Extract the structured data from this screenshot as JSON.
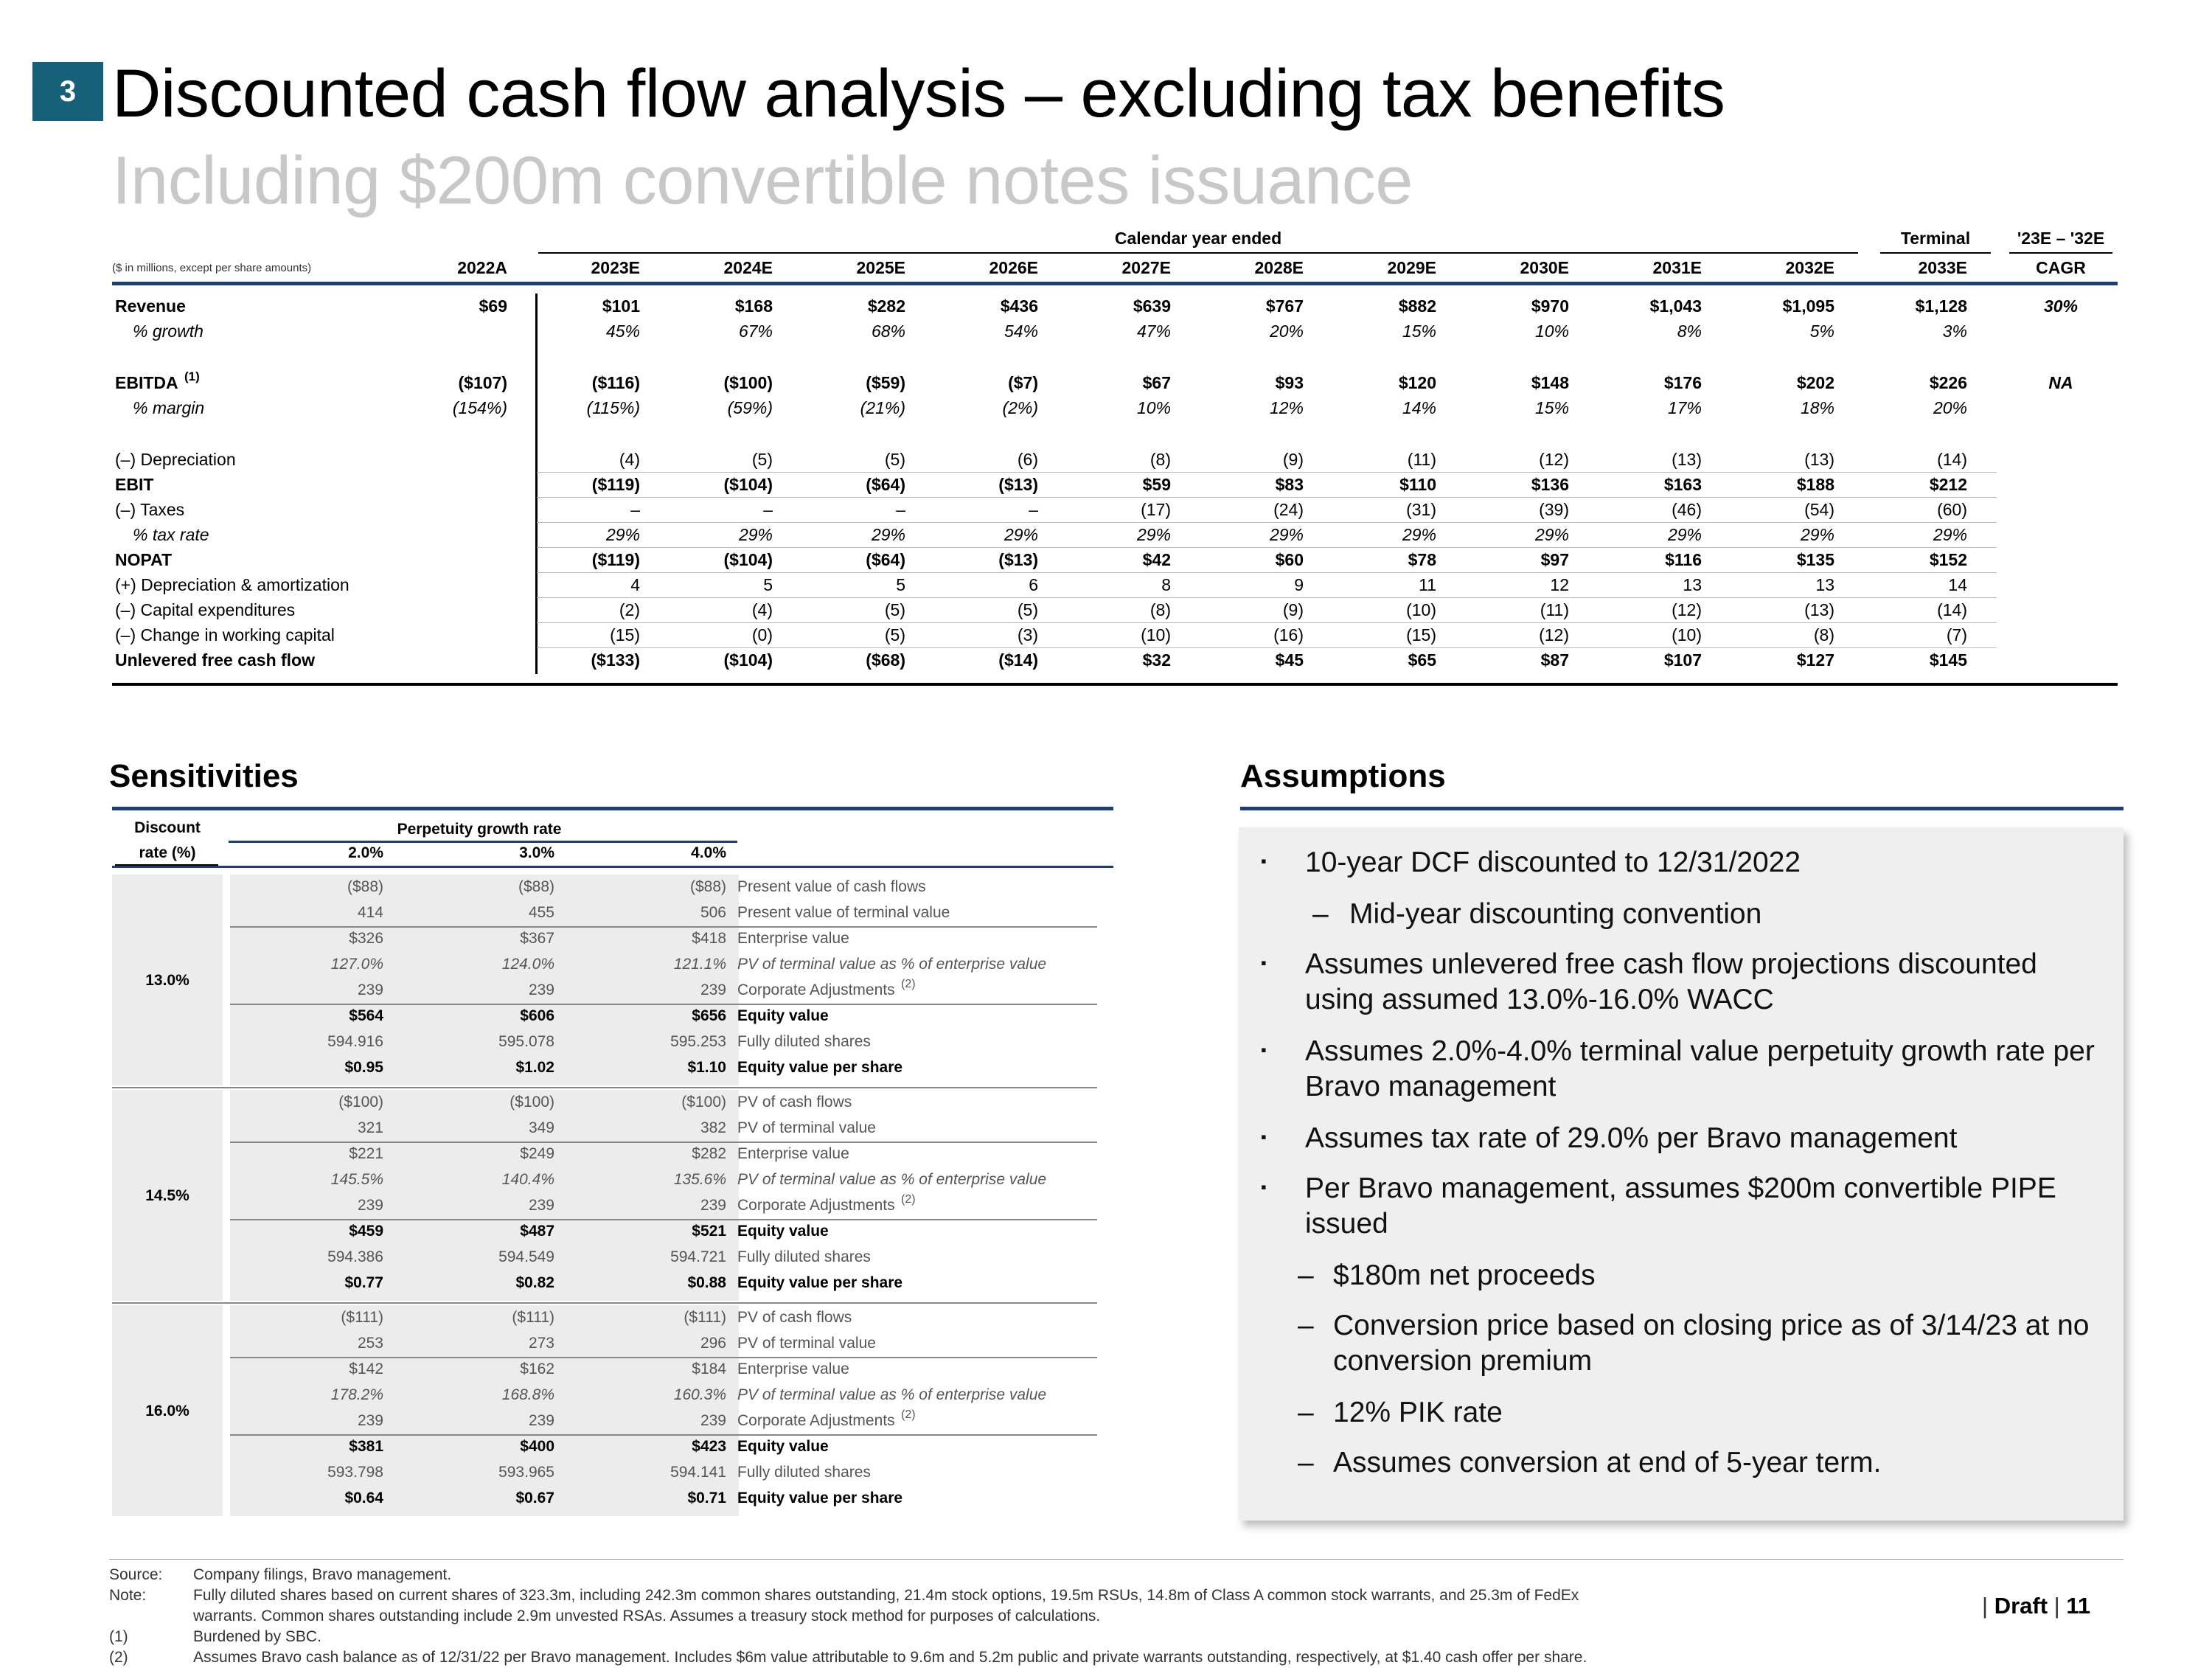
{
  "header": {
    "section_number": "3",
    "title": "Discounted cash flow analysis – excluding tax benefits",
    "subtitle": "Including $200m convertible notes issuance"
  },
  "dcf": {
    "units_note": "($ in millions, except per share amounts)",
    "calendar_label": "Calendar year ended",
    "terminal_label": "Terminal",
    "cagr_label_top": "'23E – '32E",
    "cagr_label": "CAGR",
    "columns": [
      "2022A",
      "2023E",
      "2024E",
      "2025E",
      "2026E",
      "2027E",
      "2028E",
      "2029E",
      "2030E",
      "2031E",
      "2032E",
      "2033E"
    ],
    "rows": [
      {
        "label": "Revenue",
        "style": "bold-label",
        "values": [
          "$69",
          "$101",
          "$168",
          "$282",
          "$436",
          "$639",
          "$767",
          "$882",
          "$970",
          "$1,043",
          "$1,095",
          "$1,128"
        ],
        "cagr": "30%"
      },
      {
        "label": "% growth",
        "style": "italic",
        "values": [
          "",
          "45%",
          "67%",
          "68%",
          "54%",
          "47%",
          "20%",
          "15%",
          "10%",
          "8%",
          "5%",
          "3%"
        ],
        "cagr": ""
      },
      {
        "label": "EBITDA",
        "footnote": "(1)",
        "style": "bold-label",
        "values": [
          "($107)",
          "($116)",
          "($100)",
          "($59)",
          "($7)",
          "$67",
          "$93",
          "$120",
          "$148",
          "$176",
          "$202",
          "$226"
        ],
        "cagr": "NA"
      },
      {
        "label": "% margin",
        "style": "italic",
        "values": [
          "(154%)",
          "(115%)",
          "(59%)",
          "(21%)",
          "(2%)",
          "10%",
          "12%",
          "14%",
          "15%",
          "17%",
          "18%",
          "20%"
        ],
        "cagr": ""
      },
      {
        "label": "(–) Depreciation",
        "style": "plain",
        "values": [
          "",
          "(4)",
          "(5)",
          "(5)",
          "(6)",
          "(8)",
          "(9)",
          "(11)",
          "(12)",
          "(13)",
          "(13)",
          "(14)"
        ],
        "cagr": ""
      },
      {
        "label": "EBIT",
        "style": "bold",
        "values": [
          "",
          "($119)",
          "($104)",
          "($64)",
          "($13)",
          "$59",
          "$83",
          "$110",
          "$136",
          "$163",
          "$188",
          "$212"
        ],
        "cagr": ""
      },
      {
        "label": "(–) Taxes",
        "style": "plain",
        "values": [
          "",
          "–",
          "–",
          "–",
          "–",
          "(17)",
          "(24)",
          "(31)",
          "(39)",
          "(46)",
          "(54)",
          "(60)"
        ],
        "cagr": ""
      },
      {
        "label": "% tax rate",
        "style": "italic",
        "values": [
          "",
          "29%",
          "29%",
          "29%",
          "29%",
          "29%",
          "29%",
          "29%",
          "29%",
          "29%",
          "29%",
          "29%"
        ],
        "cagr": ""
      },
      {
        "label": "NOPAT",
        "style": "bold",
        "values": [
          "",
          "($119)",
          "($104)",
          "($64)",
          "($13)",
          "$42",
          "$60",
          "$78",
          "$97",
          "$116",
          "$135",
          "$152"
        ],
        "cagr": ""
      },
      {
        "label": "(+) Depreciation & amortization",
        "style": "plain",
        "values": [
          "",
          "4",
          "5",
          "5",
          "6",
          "8",
          "9",
          "11",
          "12",
          "13",
          "13",
          "14"
        ],
        "cagr": ""
      },
      {
        "label": "(–) Capital expenditures",
        "style": "plain",
        "values": [
          "",
          "(2)",
          "(4)",
          "(5)",
          "(5)",
          "(8)",
          "(9)",
          "(10)",
          "(11)",
          "(12)",
          "(13)",
          "(14)"
        ],
        "cagr": ""
      },
      {
        "label": "(–) Change in working capital",
        "style": "plain",
        "values": [
          "",
          "(15)",
          "(0)",
          "(5)",
          "(3)",
          "(10)",
          "(16)",
          "(15)",
          "(12)",
          "(10)",
          "(8)",
          "(7)"
        ],
        "cagr": ""
      },
      {
        "label": "Unlevered free cash flow",
        "style": "bold",
        "values": [
          "",
          "($133)",
          "($104)",
          "($68)",
          "($14)",
          "$32",
          "$45",
          "$65",
          "$87",
          "$107",
          "$127",
          "$145"
        ],
        "cagr": ""
      }
    ]
  },
  "sensitivities": {
    "heading": "Sensitivities",
    "discount_label_1": "Discount",
    "discount_label_2": "rate (%)",
    "growth_label": "Perpetuity growth rate",
    "growth_rates": [
      "2.0%",
      "3.0%",
      "4.0%"
    ],
    "blocks": [
      {
        "rate": "13.0%",
        "rows": [
          {
            "v": [
              "($88)",
              "($88)",
              "($88)"
            ],
            "label": "Present value of cash flows",
            "style": "plain"
          },
          {
            "v": [
              "414",
              "455",
              "506"
            ],
            "label": "Present value of terminal value",
            "style": "plain"
          },
          {
            "v": [
              "$326",
              "$367",
              "$418"
            ],
            "label": "Enterprise value",
            "style": "plain"
          },
          {
            "v": [
              "127.0%",
              "124.0%",
              "121.1%"
            ],
            "label": "PV of terminal value as % of enterprise value",
            "style": "italic"
          },
          {
            "v": [
              "239",
              "239",
              "239"
            ],
            "label": "Corporate Adjustments",
            "sup": "(2)",
            "style": "plain"
          },
          {
            "v": [
              "$564",
              "$606",
              "$656"
            ],
            "label": "Equity value",
            "style": "bold"
          },
          {
            "v": [
              "594.916",
              "595.078",
              "595.253"
            ],
            "label": "Fully diluted shares",
            "style": "plain"
          },
          {
            "v": [
              "$0.95",
              "$1.02",
              "$1.10"
            ],
            "label": "Equity value per share",
            "style": "bold"
          }
        ]
      },
      {
        "rate": "14.5%",
        "rows": [
          {
            "v": [
              "($100)",
              "($100)",
              "($100)"
            ],
            "label": "PV of cash flows",
            "style": "plain"
          },
          {
            "v": [
              "321",
              "349",
              "382"
            ],
            "label": "PV of terminal value",
            "style": "plain"
          },
          {
            "v": [
              "$221",
              "$249",
              "$282"
            ],
            "label": "Enterprise value",
            "style": "plain"
          },
          {
            "v": [
              "145.5%",
              "140.4%",
              "135.6%"
            ],
            "label": "PV of terminal value as % of enterprise value",
            "style": "italic"
          },
          {
            "v": [
              "239",
              "239",
              "239"
            ],
            "label": "Corporate Adjustments",
            "sup": "(2)",
            "style": "plain"
          },
          {
            "v": [
              "$459",
              "$487",
              "$521"
            ],
            "label": "Equity value",
            "style": "bold"
          },
          {
            "v": [
              "594.386",
              "594.549",
              "594.721"
            ],
            "label": "Fully diluted shares",
            "style": "plain"
          },
          {
            "v": [
              "$0.77",
              "$0.82",
              "$0.88"
            ],
            "label": "Equity value per share",
            "style": "bold"
          }
        ]
      },
      {
        "rate": "16.0%",
        "rows": [
          {
            "v": [
              "($111)",
              "($111)",
              "($111)"
            ],
            "label": "PV of cash flows",
            "style": "plain"
          },
          {
            "v": [
              "253",
              "273",
              "296"
            ],
            "label": "PV of terminal value",
            "style": "plain"
          },
          {
            "v": [
              "$142",
              "$162",
              "$184"
            ],
            "label": "Enterprise value",
            "style": "plain"
          },
          {
            "v": [
              "178.2%",
              "168.8%",
              "160.3%"
            ],
            "label": "PV of terminal value as % of enterprise value",
            "style": "italic"
          },
          {
            "v": [
              "239",
              "239",
              "239"
            ],
            "label": "Corporate Adjustments",
            "sup": "(2)",
            "style": "plain"
          },
          {
            "v": [
              "$381",
              "$400",
              "$423"
            ],
            "label": "Equity value",
            "style": "bold"
          },
          {
            "v": [
              "593.798",
              "593.965",
              "594.141"
            ],
            "label": "Fully diluted shares",
            "style": "plain"
          },
          {
            "v": [
              "$0.64",
              "$0.67",
              "$0.71"
            ],
            "label": "Equity value per share",
            "style": "bold"
          }
        ]
      }
    ]
  },
  "assumptions": {
    "heading": "Assumptions",
    "items": [
      {
        "level": 1,
        "marker": "▪",
        "text": "10-year DCF discounted to 12/31/2022"
      },
      {
        "level": 2,
        "marker": "–",
        "text": "Mid-year discounting convention"
      },
      {
        "level": 1,
        "marker": "▪",
        "text": "Assumes unlevered free cash flow projections discounted using assumed 13.0%-16.0% WACC"
      },
      {
        "level": 1,
        "marker": "▪",
        "text": "Assumes 2.0%-4.0% terminal value perpetuity growth rate per Bravo management"
      },
      {
        "level": 1,
        "marker": "▪",
        "text": "Assumes tax rate of 29.0% per Bravo management"
      },
      {
        "level": 1,
        "marker": "▪",
        "text": "Per Bravo management, assumes $200m convertible PIPE issued"
      },
      {
        "level": 2,
        "marker": "–",
        "text": "$180m net proceeds"
      },
      {
        "level": 2,
        "marker": "–",
        "text": "Conversion price based on closing price as of 3/14/23 at no conversion premium"
      },
      {
        "level": 2,
        "marker": "–",
        "text": "12% PIK rate"
      },
      {
        "level": 2,
        "marker": "–",
        "text": "Assumes conversion at end of 5-year term."
      }
    ]
  },
  "footnotes": [
    {
      "key": "Source:",
      "text": "Company filings, Bravo management."
    },
    {
      "key": "Note:",
      "text": "Fully diluted shares based on current shares of 323.3m, including 242.3m common shares outstanding, 21.4m stock options, 19.5m RSUs, 14.8m of Class A common stock warrants, and 25.3m of FedEx"
    },
    {
      "key": "",
      "text": "warrants. Common shares outstanding include 2.9m unvested RSAs. Assumes a treasury stock method for purposes of calculations."
    },
    {
      "key": "(1)",
      "text": "Burdened by SBC."
    },
    {
      "key": "(2)",
      "text": "Assumes Bravo cash balance as of 12/31/22 per Bravo management. Includes $6m value attributable to 9.6m and 5.2m public and private warrants outstanding, respectively, at $1.40 cash offer per share."
    }
  ],
  "page_footer": {
    "draft_label": "Draft",
    "page_number": "11"
  }
}
